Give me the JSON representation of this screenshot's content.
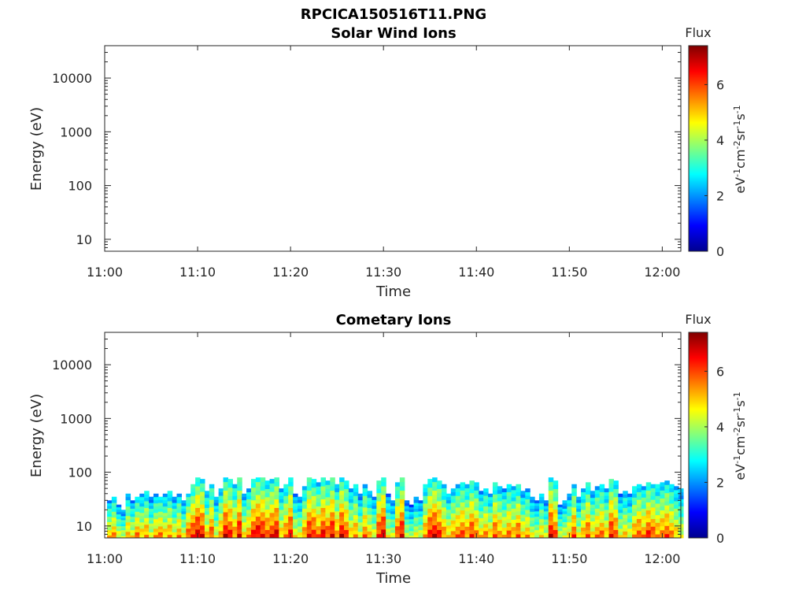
{
  "figure": {
    "filename": "RPCICA150516T11.PNG"
  },
  "chart_data": [
    {
      "type": "heatmap",
      "title": "Solar Wind Ions",
      "xlabel": "Time",
      "ylabel": "Energy (eV)",
      "x_ticks": [
        "11:00",
        "11:10",
        "11:20",
        "11:30",
        "11:40",
        "11:50",
        "12:00"
      ],
      "x_range_minutes": [
        0,
        62
      ],
      "y_scale": "log",
      "y_ticks": [
        "10",
        "100",
        "1000",
        "10000"
      ],
      "y_range_eV": [
        6,
        40000
      ],
      "colorbar": {
        "label": "Flux",
        "unit": "eV-1cm-2sr-1s-1",
        "range": [
          0,
          7.4
        ],
        "ticks": [
          "0",
          "2",
          "4",
          "6"
        ]
      },
      "columns": []
    },
    {
      "type": "heatmap",
      "title": "Cometary Ions",
      "xlabel": "Time",
      "ylabel": "Energy (eV)",
      "x_ticks": [
        "11:00",
        "11:10",
        "11:20",
        "11:30",
        "11:40",
        "11:50",
        "12:00"
      ],
      "x_range_minutes": [
        0,
        62
      ],
      "y_scale": "log",
      "y_ticks": [
        "10",
        "100",
        "1000",
        "10000"
      ],
      "y_range_eV": [
        6,
        40000
      ],
      "colorbar": {
        "label": "Flux",
        "unit": "eV-1cm-2sr-1s-1",
        "range": [
          0,
          7.4
        ],
        "ticks": [
          "0",
          "2",
          "4",
          "6"
        ]
      },
      "columns_note": "each column: [minute, peak flux at lowest energy, highest energy reached in eV]",
      "columns": [
        [
          0.5,
          5.5,
          30
        ],
        [
          1.0,
          6.0,
          35
        ],
        [
          1.5,
          5.0,
          25
        ],
        [
          2.0,
          4.8,
          20
        ],
        [
          2.5,
          5.8,
          40
        ],
        [
          3.0,
          5.2,
          30
        ],
        [
          3.5,
          6.2,
          35
        ],
        [
          4.0,
          5.5,
          40
        ],
        [
          4.5,
          6.0,
          45
        ],
        [
          5.0,
          5.0,
          35
        ],
        [
          5.5,
          5.8,
          40
        ],
        [
          6.0,
          6.2,
          35
        ],
        [
          6.5,
          5.5,
          40
        ],
        [
          7.0,
          6.0,
          45
        ],
        [
          7.5,
          5.2,
          35
        ],
        [
          8.0,
          6.0,
          40
        ],
        [
          8.5,
          5.0,
          30
        ],
        [
          9.0,
          6.5,
          40
        ],
        [
          9.5,
          6.8,
          60
        ],
        [
          10.0,
          7.3,
          80
        ],
        [
          10.5,
          7.0,
          75
        ],
        [
          11.0,
          5.5,
          45
        ],
        [
          11.5,
          6.5,
          60
        ],
        [
          12.0,
          5.0,
          35
        ],
        [
          12.5,
          6.0,
          50
        ],
        [
          13.0,
          7.2,
          80
        ],
        [
          13.5,
          6.8,
          75
        ],
        [
          14.0,
          6.0,
          60
        ],
        [
          14.5,
          7.2,
          80
        ],
        [
          15.0,
          5.5,
          40
        ],
        [
          15.5,
          6.0,
          50
        ],
        [
          16.0,
          6.8,
          75
        ],
        [
          16.5,
          7.2,
          80
        ],
        [
          17.0,
          7.0,
          80
        ],
        [
          17.5,
          6.5,
          70
        ],
        [
          18.0,
          6.8,
          75
        ],
        [
          18.5,
          7.2,
          80
        ],
        [
          19.0,
          5.5,
          50
        ],
        [
          19.5,
          6.2,
          60
        ],
        [
          20.0,
          7.0,
          80
        ],
        [
          20.5,
          5.2,
          40
        ],
        [
          21.0,
          5.0,
          35
        ],
        [
          21.5,
          6.0,
          55
        ],
        [
          22.0,
          7.0,
          80
        ],
        [
          22.5,
          6.8,
          75
        ],
        [
          23.0,
          6.2,
          65
        ],
        [
          23.5,
          7.0,
          80
        ],
        [
          24.0,
          6.5,
          70
        ],
        [
          24.5,
          7.2,
          80
        ],
        [
          25.0,
          6.0,
          60
        ],
        [
          25.5,
          7.2,
          80
        ],
        [
          26.0,
          6.5,
          70
        ],
        [
          26.5,
          5.5,
          50
        ],
        [
          27.0,
          6.0,
          60
        ],
        [
          27.5,
          5.0,
          40
        ],
        [
          28.0,
          6.2,
          60
        ],
        [
          28.5,
          5.5,
          45
        ],
        [
          29.0,
          5.0,
          35
        ],
        [
          29.5,
          6.8,
          70
        ],
        [
          30.0,
          7.3,
          80
        ],
        [
          30.5,
          5.0,
          40
        ],
        [
          31.0,
          4.8,
          30
        ],
        [
          31.5,
          6.5,
          65
        ],
        [
          32.0,
          7.2,
          80
        ],
        [
          32.5,
          4.8,
          30
        ],
        [
          33.0,
          4.5,
          25
        ],
        [
          33.5,
          5.0,
          35
        ],
        [
          34.0,
          4.8,
          30
        ],
        [
          34.5,
          6.0,
          60
        ],
        [
          35.0,
          7.0,
          75
        ],
        [
          35.5,
          7.2,
          80
        ],
        [
          36.0,
          6.8,
          70
        ],
        [
          36.5,
          6.0,
          60
        ],
        [
          37.0,
          5.5,
          40
        ],
        [
          37.5,
          6.0,
          50
        ],
        [
          38.0,
          6.2,
          60
        ],
        [
          38.5,
          6.5,
          65
        ],
        [
          39.0,
          6.0,
          60
        ],
        [
          39.5,
          6.8,
          70
        ],
        [
          40.0,
          6.2,
          65
        ],
        [
          40.5,
          5.5,
          45
        ],
        [
          41.0,
          6.0,
          50
        ],
        [
          41.5,
          5.5,
          40
        ],
        [
          42.0,
          6.5,
          65
        ],
        [
          42.5,
          6.0,
          55
        ],
        [
          43.0,
          5.5,
          50
        ],
        [
          43.5,
          6.2,
          60
        ],
        [
          44.0,
          5.8,
          55
        ],
        [
          44.5,
          6.5,
          60
        ],
        [
          45.0,
          5.5,
          45
        ],
        [
          45.5,
          5.8,
          50
        ],
        [
          46.0,
          5.0,
          35
        ],
        [
          46.5,
          4.8,
          30
        ],
        [
          47.0,
          5.5,
          40
        ],
        [
          47.5,
          5.0,
          30
        ],
        [
          48.0,
          7.2,
          80
        ],
        [
          48.5,
          6.5,
          70
        ],
        [
          49.0,
          4.8,
          25
        ],
        [
          49.5,
          5.0,
          30
        ],
        [
          50.0,
          5.5,
          40
        ],
        [
          50.5,
          6.5,
          60
        ],
        [
          51.0,
          5.0,
          35
        ],
        [
          51.5,
          5.8,
          50
        ],
        [
          52.0,
          6.5,
          65
        ],
        [
          52.5,
          5.5,
          45
        ],
        [
          53.0,
          6.0,
          55
        ],
        [
          53.5,
          6.2,
          60
        ],
        [
          54.0,
          5.5,
          50
        ],
        [
          54.5,
          7.0,
          75
        ],
        [
          55.0,
          6.5,
          70
        ],
        [
          55.5,
          5.0,
          40
        ],
        [
          56.0,
          5.5,
          45
        ],
        [
          56.5,
          5.0,
          40
        ],
        [
          57.0,
          6.0,
          55
        ],
        [
          57.5,
          6.5,
          60
        ],
        [
          58.0,
          6.0,
          55
        ],
        [
          58.5,
          6.8,
          65
        ],
        [
          59.0,
          6.5,
          60
        ],
        [
          59.5,
          6.0,
          60
        ],
        [
          60.0,
          6.2,
          65
        ],
        [
          60.5,
          6.5,
          70
        ],
        [
          61.0,
          6.0,
          60
        ],
        [
          61.5,
          5.5,
          55
        ],
        [
          62.0,
          5.0,
          50
        ]
      ]
    }
  ],
  "colors": {
    "axis": "#262626",
    "colormap": [
      "#00008f",
      "#0000ff",
      "#00ffff",
      "#ffff00",
      "#ff0000",
      "#800000"
    ]
  }
}
